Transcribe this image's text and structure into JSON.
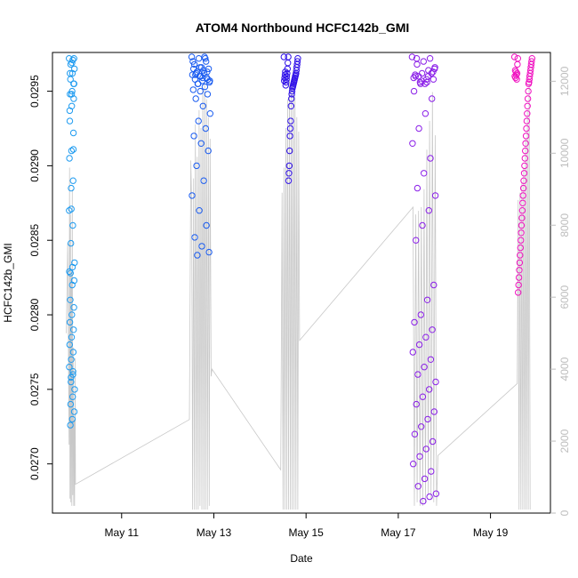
{
  "chart_data": {
    "type": "scatter",
    "title": "ATOM4 Northbound HCFC142b_GMI",
    "xlabel": "Date",
    "ylabel": "HCFC142b_GMI",
    "x_ticks": [
      "May 11",
      "May 13",
      "May 15",
      "May 17",
      "May 19"
    ],
    "x_tick_days": [
      11,
      13,
      15,
      17,
      19
    ],
    "xlim_days": [
      9.5,
      20.3
    ],
    "ylim": [
      0.02667,
      0.02976
    ],
    "y_ticks": [
      0.027,
      0.0275,
      0.028,
      0.0285,
      0.029,
      0.0295
    ],
    "y_tick_labels": [
      "0.0270",
      "0.0275",
      "0.0280",
      "0.0285",
      "0.0290",
      "0.0295"
    ],
    "right_axis": {
      "ylim": [
        0,
        12800
      ],
      "ticks": [
        0,
        2000,
        4000,
        6000,
        8000,
        10000,
        12000
      ],
      "color": "#bdbdbd",
      "series_description": "altitude trace (gray line)"
    },
    "grid": false,
    "legend": "none",
    "point_series": [
      {
        "color": "#1e9bf0",
        "day_range": [
          9.86,
          9.98
        ],
        "y": [
          0.02972,
          0.02971,
          0.02968,
          0.02965,
          0.02962,
          0.02958,
          0.02955,
          0.0295,
          0.02948,
          0.02945,
          0.0294,
          0.0293,
          0.02922,
          0.0291,
          0.02905,
          0.0289,
          0.02885,
          0.0287,
          0.0286,
          0.02848,
          0.02835,
          0.02832,
          0.02828,
          0.02823,
          0.0282,
          0.0281,
          0.02805,
          0.028,
          0.02795,
          0.0279,
          0.02785,
          0.0278,
          0.02775,
          0.0277,
          0.02765,
          0.0276,
          0.02755,
          0.0275,
          0.02745,
          0.0274,
          0.02735,
          0.0273,
          0.02726,
          0.02972,
          0.02969,
          0.02962,
          0.02955,
          0.02948,
          0.02937,
          0.02911,
          0.02871,
          0.02829,
          0.02762,
          0.02758
        ]
      },
      {
        "color": "#1a5cf0",
        "day_range": [
          12.52,
          12.92
        ],
        "y": [
          0.02973,
          0.02972,
          0.0297,
          0.02968,
          0.02966,
          0.02965,
          0.02963,
          0.02962,
          0.02961,
          0.0296,
          0.02959,
          0.02958,
          0.02957,
          0.02956,
          0.02955,
          0.02953,
          0.02951,
          0.0295,
          0.02948,
          0.02945,
          0.0294,
          0.02935,
          0.0293,
          0.02925,
          0.0292,
          0.02915,
          0.0291,
          0.029,
          0.0289,
          0.0288,
          0.0287,
          0.0286,
          0.02852,
          0.02846,
          0.02842,
          0.0284,
          0.02973,
          0.0297,
          0.02966,
          0.02963,
          0.02961,
          0.02959,
          0.02957,
          0.02955,
          0.02972,
          0.02965,
          0.0296,
          0.02958,
          0.02962,
          0.02964
        ]
      },
      {
        "color": "#2f10e8",
        "day_range": [
          14.52,
          14.82
        ],
        "y": [
          0.02973,
          0.02972,
          0.0297,
          0.02968,
          0.02966,
          0.02964,
          0.02962,
          0.02961,
          0.0296,
          0.02959,
          0.02958,
          0.02957,
          0.02956,
          0.02955,
          0.02954,
          0.02953,
          0.02952,
          0.0295,
          0.02948,
          0.02945,
          0.0294,
          0.0293,
          0.02925,
          0.0292,
          0.0291,
          0.029,
          0.02895,
          0.0289,
          0.02973,
          0.02969,
          0.02965,
          0.02962,
          0.0296,
          0.02958,
          0.02956,
          0.02954,
          0.02963,
          0.02961,
          0.02959,
          0.02957
        ]
      },
      {
        "color": "#8a1ee8",
        "day_range": [
          17.3,
          17.82
        ],
        "y": [
          0.02973,
          0.02972,
          0.0297,
          0.02968,
          0.02966,
          0.02964,
          0.02962,
          0.0296,
          0.02958,
          0.02956,
          0.02955,
          0.0295,
          0.02945,
          0.02935,
          0.02925,
          0.02915,
          0.02905,
          0.02895,
          0.02885,
          0.0288,
          0.0287,
          0.0286,
          0.0285,
          0.0282,
          0.0281,
          0.028,
          0.02795,
          0.0279,
          0.02785,
          0.0278,
          0.02775,
          0.0277,
          0.02765,
          0.0276,
          0.02755,
          0.0275,
          0.02745,
          0.0274,
          0.02735,
          0.0273,
          0.02725,
          0.0272,
          0.02715,
          0.0271,
          0.02705,
          0.027,
          0.02695,
          0.0269,
          0.02685,
          0.0268,
          0.02678,
          0.02675,
          0.02972,
          0.02965,
          0.0296,
          0.02957,
          0.02961,
          0.02963,
          0.02958,
          0.02956,
          0.02959,
          0.02962,
          0.02955,
          0.0296
        ]
      },
      {
        "color": "#f012c0",
        "day_range": [
          19.52,
          19.9
        ],
        "y": [
          0.02973,
          0.02972,
          0.0297,
          0.02968,
          0.02966,
          0.02964,
          0.02962,
          0.0296,
          0.02958,
          0.02956,
          0.02955,
          0.0295,
          0.02945,
          0.0294,
          0.02935,
          0.0293,
          0.02925,
          0.0292,
          0.02915,
          0.0291,
          0.02905,
          0.029,
          0.02895,
          0.0289,
          0.02885,
          0.0288,
          0.02875,
          0.0287,
          0.02865,
          0.0286,
          0.02855,
          0.0285,
          0.02845,
          0.0284,
          0.02835,
          0.0283,
          0.02825,
          0.0282,
          0.02815,
          0.02972,
          0.02968,
          0.02962,
          0.02958,
          0.02961,
          0.02963,
          0.02959,
          0.02964,
          0.0296
        ]
      }
    ],
    "line_series": {
      "color": "#c8c8c8",
      "x_days": [
        9.8,
        9.83,
        9.86,
        9.87,
        9.88,
        9.89,
        9.9,
        9.91,
        9.92,
        9.93,
        9.94,
        9.95,
        9.96,
        9.97,
        9.98,
        9.99,
        10.0,
        12.47,
        12.5,
        12.52,
        12.54,
        12.56,
        12.58,
        12.6,
        12.62,
        12.64,
        12.66,
        12.68,
        12.7,
        12.72,
        12.74,
        12.76,
        12.78,
        12.8,
        12.82,
        12.84,
        12.86,
        12.88,
        12.9,
        12.92,
        12.94,
        12.96,
        14.45,
        14.48,
        14.5,
        14.52,
        14.54,
        14.56,
        14.58,
        14.6,
        14.62,
        14.64,
        14.66,
        14.68,
        14.7,
        14.72,
        14.74,
        14.76,
        14.78,
        14.8,
        14.82,
        14.84,
        14.86,
        17.32,
        17.35,
        17.38,
        17.41,
        17.44,
        17.47,
        17.5,
        17.53,
        17.56,
        17.59,
        17.62,
        17.65,
        17.68,
        17.71,
        17.74,
        17.77,
        17.8,
        17.83,
        17.86,
        19.58,
        19.6,
        19.62,
        19.64,
        19.66,
        19.68,
        19.7,
        19.72,
        19.74,
        19.76,
        19.78,
        19.8,
        19.82,
        19.84,
        19.86
      ],
      "altitude_m": [
        5000,
        7500,
        1900,
        9600,
        400,
        8300,
        300,
        6700,
        200,
        9000,
        500,
        4600,
        200,
        2600,
        200,
        4300,
        800,
        2600,
        9800,
        8500,
        100,
        9300,
        100,
        10800,
        100,
        9900,
        100,
        11200,
        200,
        10700,
        100,
        11800,
        100,
        12000,
        100,
        11500,
        100,
        11000,
        200,
        10400,
        3800,
        4000,
        1200,
        8900,
        100,
        9600,
        100,
        10700,
        100,
        11500,
        100,
        12100,
        100,
        11800,
        100,
        12300,
        100,
        11600,
        100,
        11000,
        100,
        10600,
        4800,
        8500,
        200,
        8300,
        300,
        8400,
        200,
        8500,
        200,
        9000,
        300,
        10100,
        500,
        10900,
        400,
        11700,
        300,
        10500,
        200,
        1600,
        3600,
        8700,
        100,
        8900,
        100,
        9200,
        100,
        9600,
        100,
        10400,
        100,
        11200,
        100,
        12000,
        100
      ]
    }
  }
}
